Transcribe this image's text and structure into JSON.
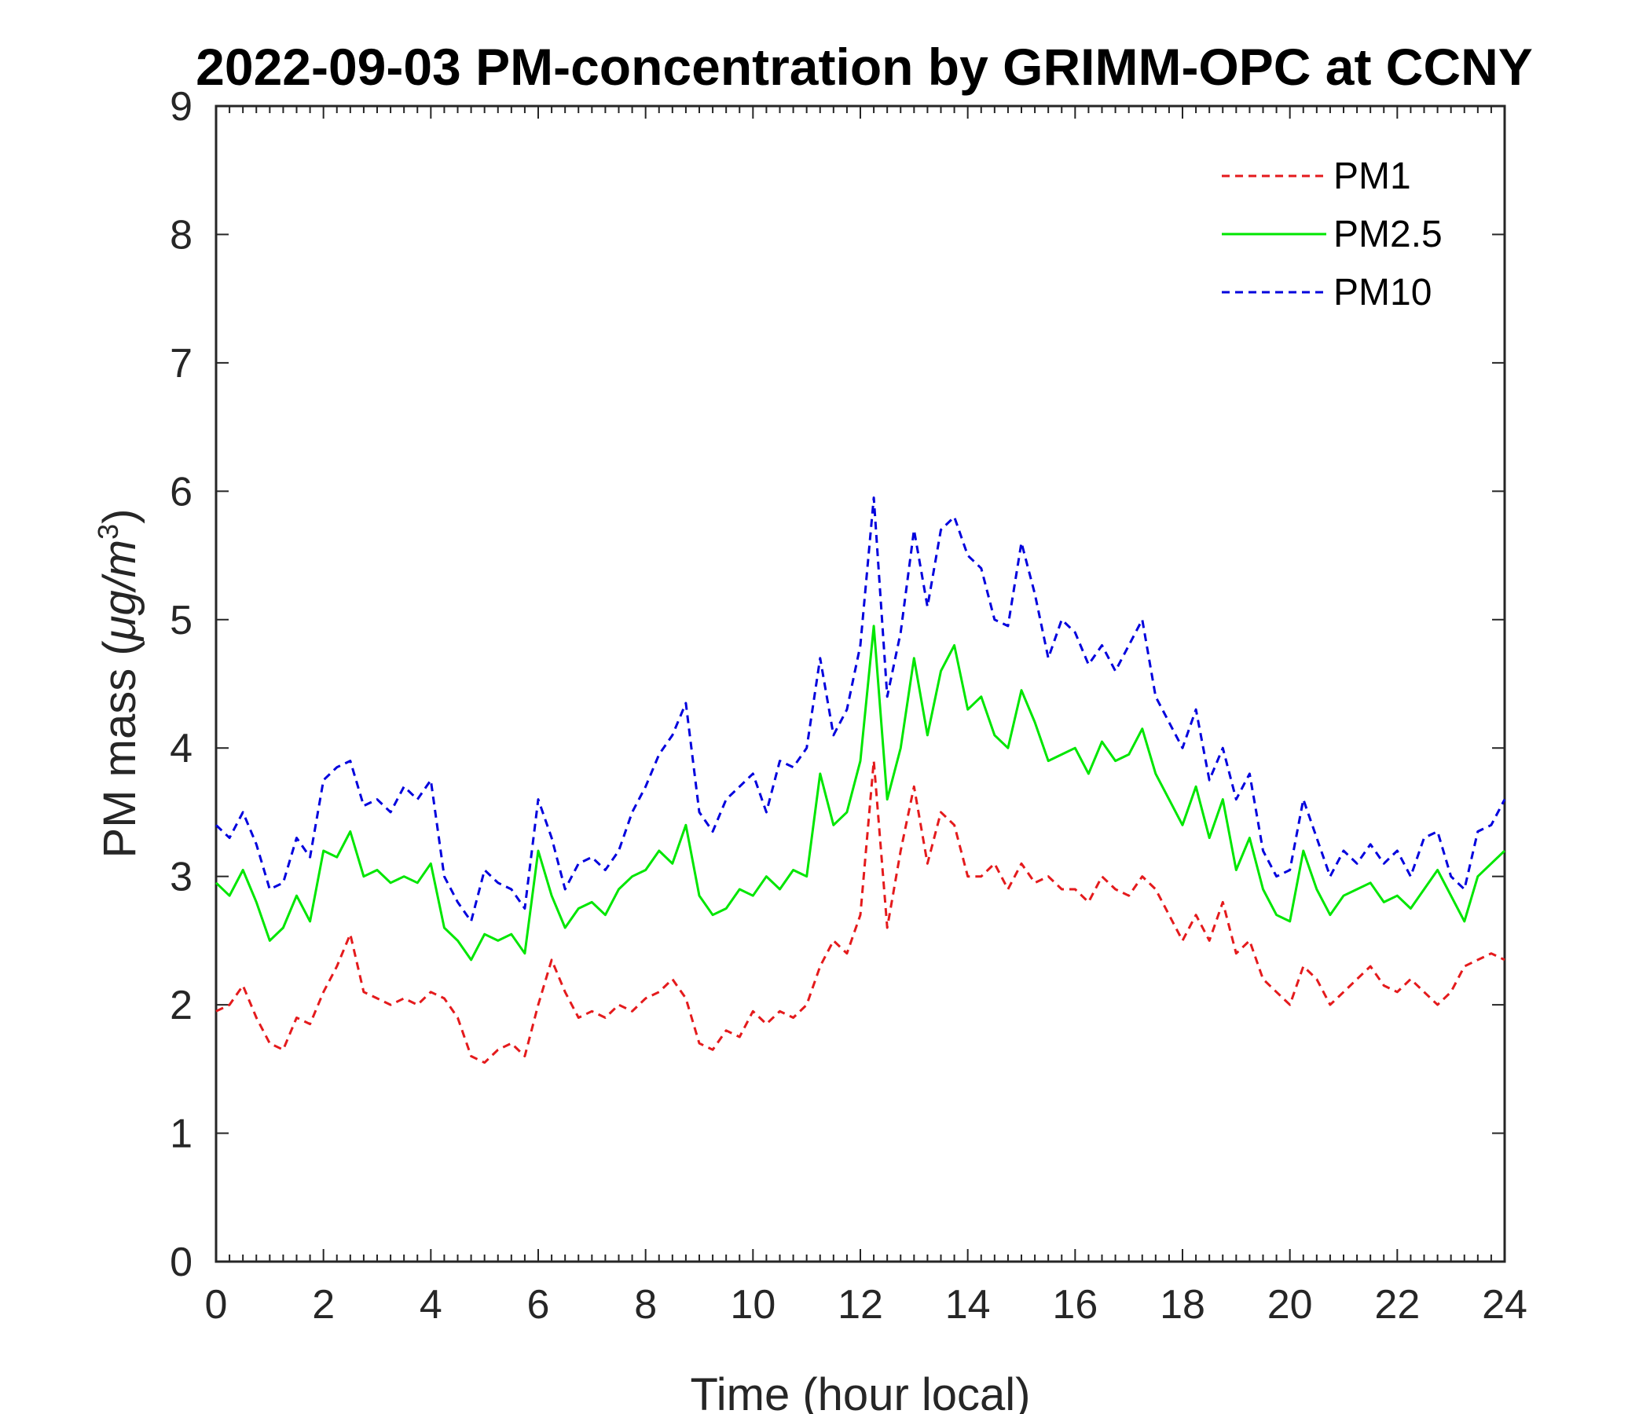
{
  "chart_data": {
    "type": "line",
    "title": "2022-09-03 PM-concentration by GRIMM-OPC at CCNY",
    "xlabel": "Time (hour local)",
    "ylabel_prefix": "PM mass (",
    "ylabel_unit": "μg/m",
    "ylabel_sup": "3",
    "ylabel_suffix": ")",
    "xlim": [
      0,
      24
    ],
    "ylim": [
      0,
      9
    ],
    "xticks": [
      0,
      2,
      4,
      6,
      8,
      10,
      12,
      14,
      16,
      18,
      20,
      22,
      24
    ],
    "yticks": [
      0,
      1,
      2,
      3,
      4,
      5,
      6,
      7,
      8,
      9
    ],
    "grid": false,
    "legend_position": "top-right",
    "x": [
      0,
      0.25,
      0.5,
      0.75,
      1,
      1.25,
      1.5,
      1.75,
      2,
      2.25,
      2.5,
      2.75,
      3,
      3.25,
      3.5,
      3.75,
      4,
      4.25,
      4.5,
      4.75,
      5,
      5.25,
      5.5,
      5.75,
      6,
      6.25,
      6.5,
      6.75,
      7,
      7.25,
      7.5,
      7.75,
      8,
      8.25,
      8.5,
      8.75,
      9,
      9.25,
      9.5,
      9.75,
      10,
      10.25,
      10.5,
      10.75,
      11,
      11.25,
      11.5,
      11.75,
      12,
      12.25,
      12.5,
      12.75,
      13,
      13.25,
      13.5,
      13.75,
      14,
      14.25,
      14.5,
      14.75,
      15,
      15.25,
      15.5,
      15.75,
      16,
      16.25,
      16.5,
      16.75,
      17,
      17.25,
      17.5,
      17.75,
      18,
      18.25,
      18.5,
      18.75,
      19,
      19.25,
      19.5,
      19.75,
      20,
      20.25,
      20.5,
      20.75,
      21,
      21.25,
      21.5,
      21.75,
      22,
      22.25,
      22.5,
      22.75,
      23,
      23.25,
      23.5,
      23.75,
      24
    ],
    "series": [
      {
        "name": "PM1",
        "color": "#e41a1c",
        "dash": "dashed",
        "values": [
          1.95,
          2.0,
          2.15,
          1.9,
          1.7,
          1.65,
          1.9,
          1.85,
          2.1,
          2.3,
          2.55,
          2.1,
          2.05,
          2.0,
          2.05,
          2.0,
          2.1,
          2.05,
          1.9,
          1.6,
          1.55,
          1.65,
          1.7,
          1.6,
          2.0,
          2.35,
          2.1,
          1.9,
          1.95,
          1.9,
          2.0,
          1.95,
          2.05,
          2.1,
          2.2,
          2.05,
          1.7,
          1.65,
          1.8,
          1.75,
          1.95,
          1.85,
          1.95,
          1.9,
          2.0,
          2.3,
          2.5,
          2.4,
          2.7,
          3.9,
          2.6,
          3.2,
          3.7,
          3.1,
          3.5,
          3.4,
          3.0,
          3.0,
          3.1,
          2.9,
          3.1,
          2.95,
          3.0,
          2.9,
          2.9,
          2.8,
          3.0,
          2.9,
          2.85,
          3.0,
          2.9,
          2.7,
          2.5,
          2.7,
          2.5,
          2.8,
          2.4,
          2.5,
          2.2,
          2.1,
          2.0,
          2.3,
          2.2,
          2.0,
          2.1,
          2.2,
          2.3,
          2.15,
          2.1,
          2.2,
          2.1,
          2.0,
          2.1,
          2.3,
          2.35,
          2.4,
          2.35
        ]
      },
      {
        "name": "PM2.5",
        "color": "#00e600",
        "dash": "solid",
        "values": [
          2.95,
          2.85,
          3.05,
          2.8,
          2.5,
          2.6,
          2.85,
          2.65,
          3.2,
          3.15,
          3.35,
          3.0,
          3.05,
          2.95,
          3.0,
          2.95,
          3.1,
          2.6,
          2.5,
          2.35,
          2.55,
          2.5,
          2.55,
          2.4,
          3.2,
          2.85,
          2.6,
          2.75,
          2.8,
          2.7,
          2.9,
          3.0,
          3.05,
          3.2,
          3.1,
          3.4,
          2.85,
          2.7,
          2.75,
          2.9,
          2.85,
          3.0,
          2.9,
          3.05,
          3.0,
          3.8,
          3.4,
          3.5,
          3.9,
          4.95,
          3.6,
          4.0,
          4.7,
          4.1,
          4.6,
          4.8,
          4.3,
          4.4,
          4.1,
          4.0,
          4.45,
          4.2,
          3.9,
          3.95,
          4.0,
          3.8,
          4.05,
          3.9,
          3.95,
          4.15,
          3.8,
          3.6,
          3.4,
          3.7,
          3.3,
          3.6,
          3.05,
          3.3,
          2.9,
          2.7,
          2.65,
          3.2,
          2.9,
          2.7,
          2.85,
          2.9,
          2.95,
          2.8,
          2.85,
          2.75,
          2.9,
          3.05,
          2.85,
          2.65,
          3.0,
          3.1,
          3.2
        ]
      },
      {
        "name": "PM10",
        "color": "#0000dd",
        "dash": "dashed",
        "values": [
          3.4,
          3.3,
          3.5,
          3.25,
          2.9,
          2.95,
          3.3,
          3.15,
          3.75,
          3.85,
          3.9,
          3.55,
          3.6,
          3.5,
          3.7,
          3.6,
          3.75,
          3.0,
          2.8,
          2.65,
          3.05,
          2.95,
          2.9,
          2.75,
          3.6,
          3.3,
          2.9,
          3.1,
          3.15,
          3.05,
          3.2,
          3.5,
          3.7,
          3.95,
          4.1,
          4.35,
          3.5,
          3.35,
          3.6,
          3.7,
          3.8,
          3.5,
          3.9,
          3.85,
          4.0,
          4.7,
          4.1,
          4.3,
          4.8,
          5.95,
          4.4,
          4.9,
          5.7,
          5.1,
          5.7,
          5.8,
          5.5,
          5.4,
          5.0,
          4.95,
          5.6,
          5.2,
          4.7,
          5.0,
          4.9,
          4.65,
          4.8,
          4.6,
          4.8,
          5.0,
          4.4,
          4.2,
          4.0,
          4.3,
          3.75,
          4.0,
          3.6,
          3.8,
          3.2,
          3.0,
          3.05,
          3.6,
          3.3,
          3.0,
          3.2,
          3.1,
          3.25,
          3.1,
          3.2,
          3.0,
          3.3,
          3.35,
          3.0,
          2.9,
          3.35,
          3.4,
          3.6
        ]
      }
    ]
  }
}
